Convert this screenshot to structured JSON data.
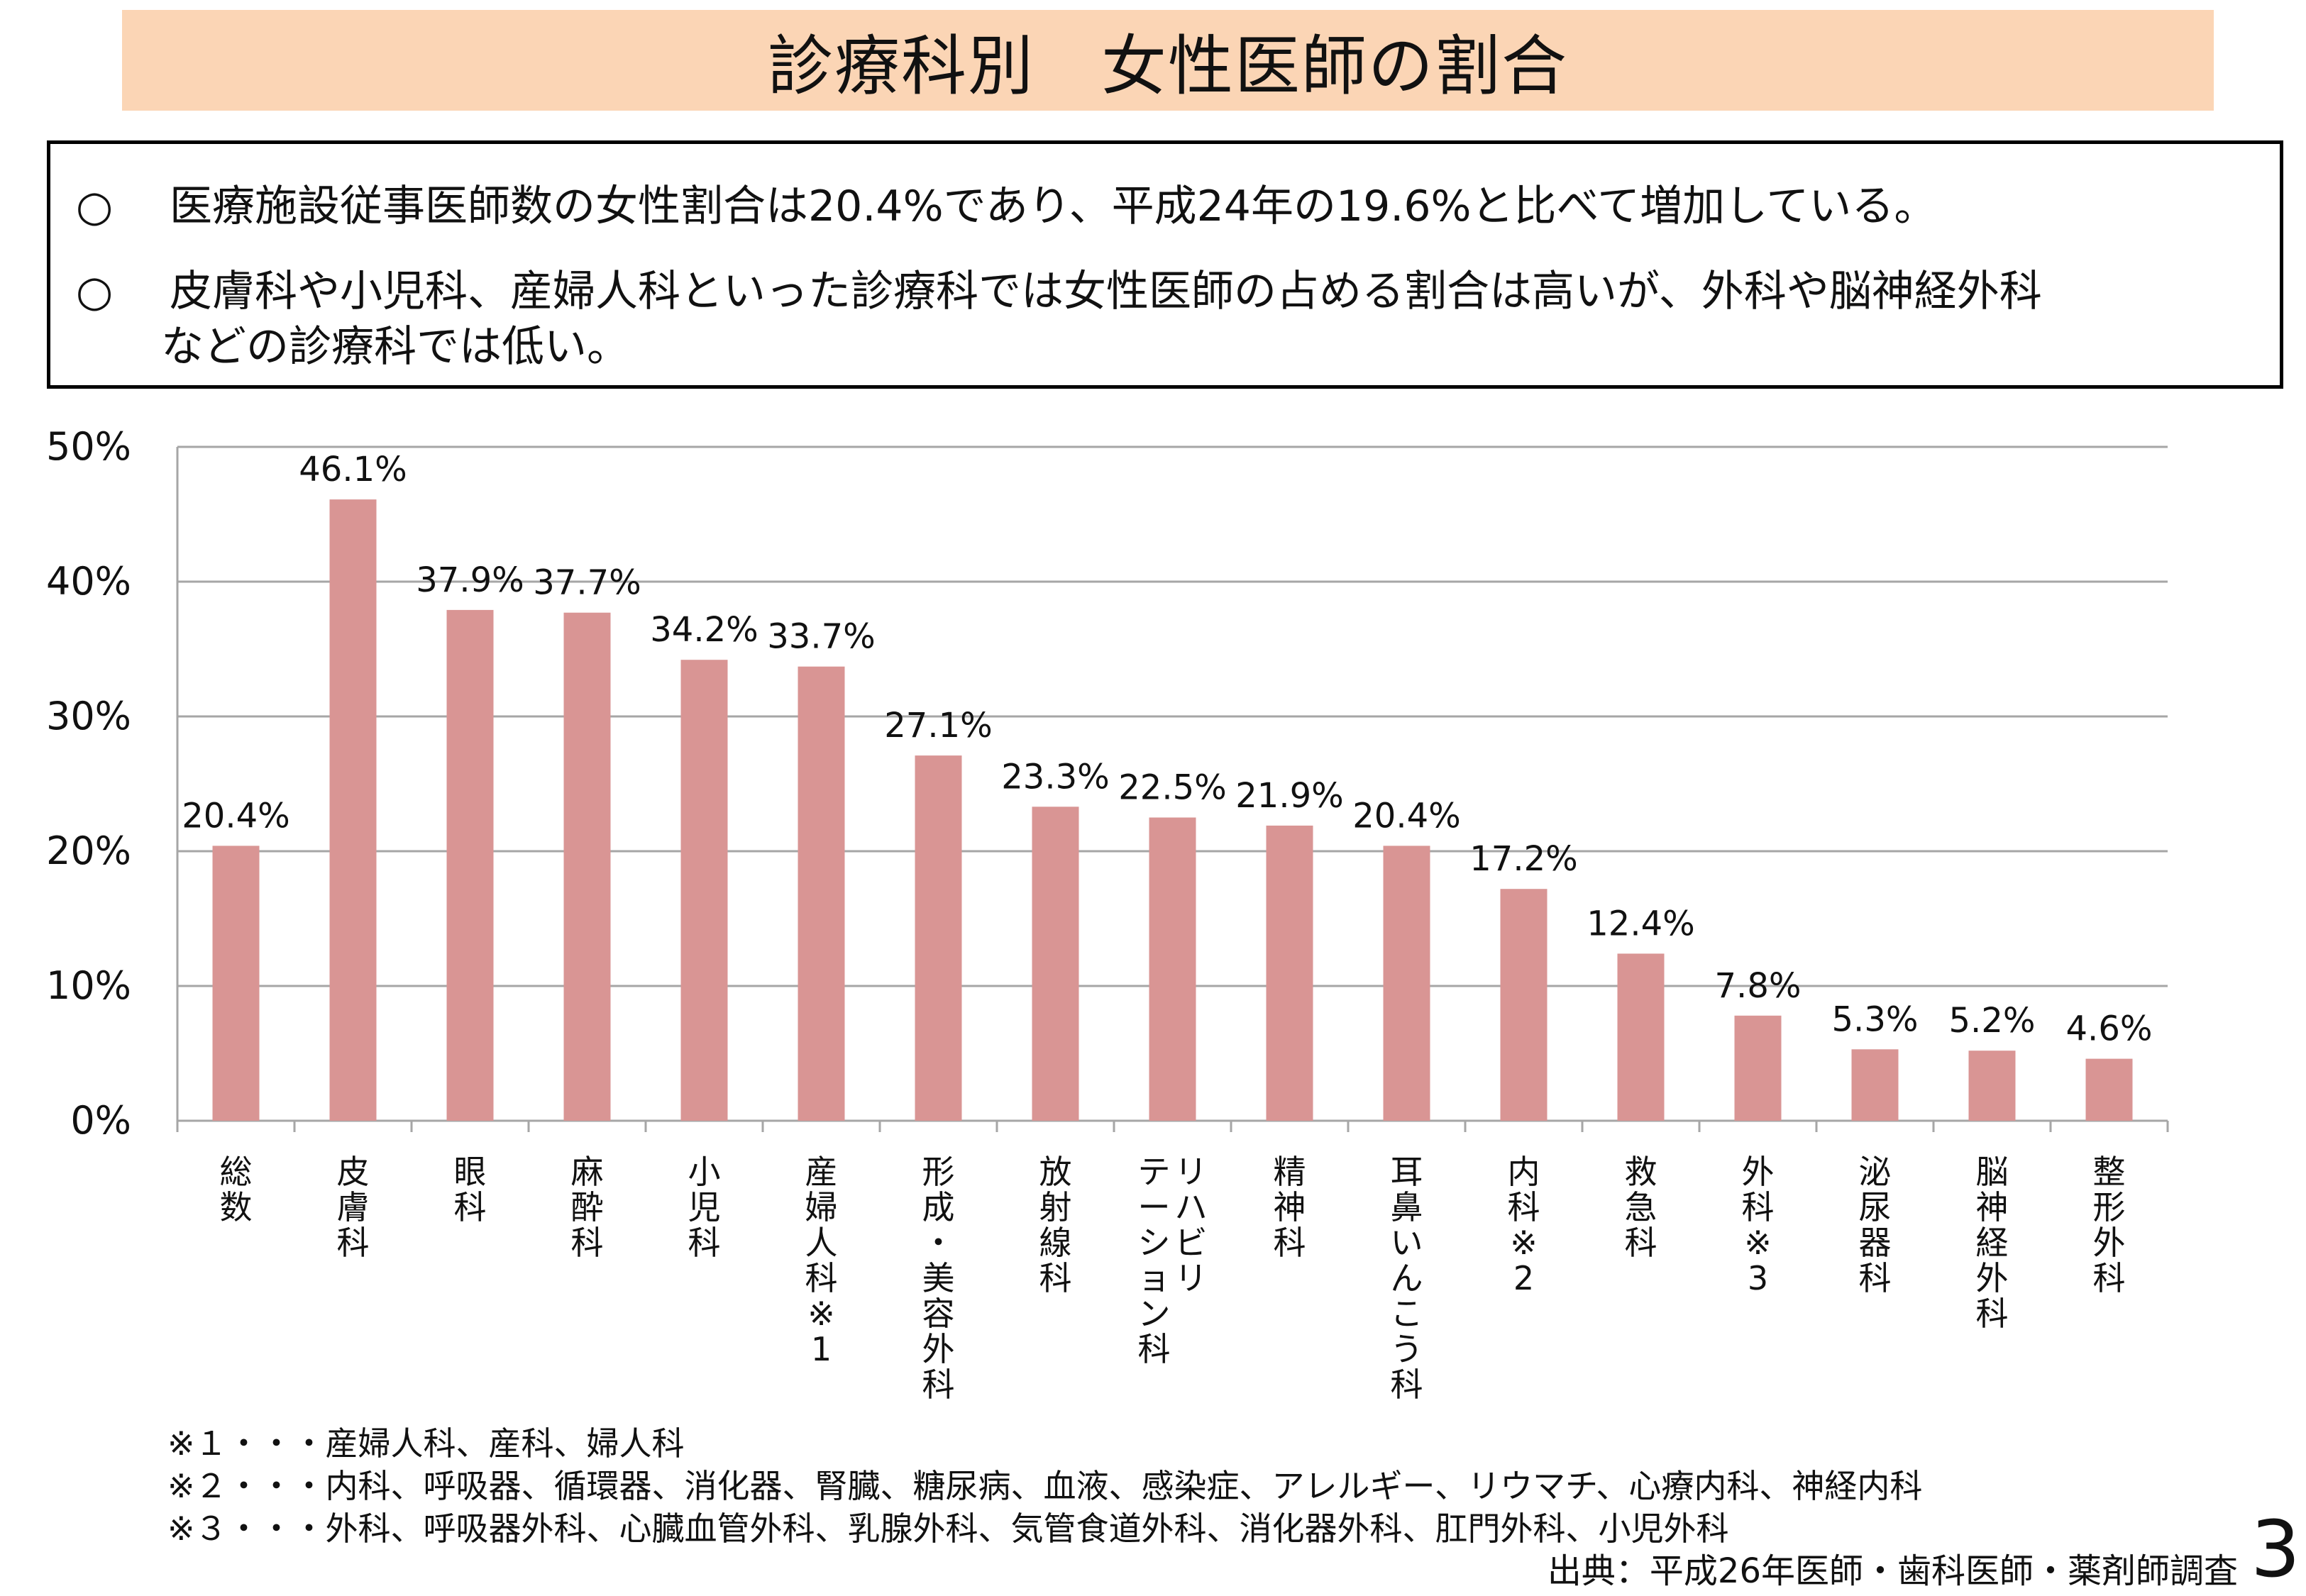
{
  "title": "診療科別　女性医師の割合",
  "summary": {
    "bullet_symbol": "○",
    "items": [
      {
        "text": "医療施設従事医師数の女性割合は20.4%であり、平成24年の19.6%と比べて増加している。"
      },
      {
        "text": "皮膚科や小児科、産婦人科といった診療科では女性医師の占める割合は高いが、外科や脳神経外科",
        "continuation": "などの診療科では低い。"
      }
    ]
  },
  "chart_data": {
    "type": "bar",
    "categories": [
      "総数",
      "皮膚科",
      "眼科",
      "麻酔科",
      "小児科",
      "産婦人科※1",
      "形成・美容外科",
      "放射線科",
      "リハビリテーション科",
      "精神科",
      "耳鼻いんこう科",
      "内科※2",
      "救急科",
      "外科※3",
      "泌尿器科",
      "脳神経外科",
      "整形外科"
    ],
    "category_label_columns": [
      [
        [
          "総",
          "数"
        ]
      ],
      [
        [
          "皮",
          "膚",
          "科"
        ]
      ],
      [
        [
          "眼",
          "科"
        ]
      ],
      [
        [
          "麻",
          "酔",
          "科"
        ]
      ],
      [
        [
          "小",
          "児",
          "科"
        ]
      ],
      [
        [
          "産",
          "婦",
          "人",
          "科",
          "※",
          "1"
        ]
      ],
      [
        [
          "形",
          "成",
          "・",
          "美",
          "容",
          "外",
          "科"
        ]
      ],
      [
        [
          "放",
          "射",
          "線",
          "科"
        ]
      ],
      [
        [
          "リ",
          "ハ",
          "ビ",
          "リ"
        ],
        [
          "テ",
          "ー",
          "シ",
          "ョ",
          "ン",
          "科"
        ]
      ],
      [
        [
          "精",
          "神",
          "科"
        ]
      ],
      [
        [
          "耳",
          "鼻",
          "い",
          "ん",
          "こ",
          "う",
          "科"
        ]
      ],
      [
        [
          "内",
          "科",
          "※",
          "2"
        ]
      ],
      [
        [
          "救",
          "急",
          "科"
        ]
      ],
      [
        [
          "外",
          "科",
          "※",
          "3"
        ]
      ],
      [
        [
          "泌",
          "尿",
          "器",
          "科"
        ]
      ],
      [
        [
          "脳",
          "神",
          "経",
          "外",
          "科"
        ]
      ],
      [
        [
          "整",
          "形",
          "外",
          "科"
        ]
      ]
    ],
    "values": [
      20.4,
      46.1,
      37.9,
      37.7,
      34.2,
      33.7,
      27.1,
      23.3,
      22.5,
      21.9,
      20.4,
      17.2,
      12.4,
      7.8,
      5.3,
      5.2,
      4.6
    ],
    "data_labels": [
      "20.4%",
      "46.1%",
      "37.9%",
      "37.7%",
      "34.2%",
      "33.7%",
      "27.1%",
      "23.3%",
      "22.5%",
      "21.9%",
      "20.4%",
      "17.2%",
      "12.4%",
      "7.8%",
      "5.3%",
      "5.2%",
      "4.6%"
    ],
    "y_ticks": [
      "0%",
      "10%",
      "20%",
      "30%",
      "40%",
      "50%"
    ],
    "ylim": [
      0,
      50
    ],
    "grid": true,
    "bar_color": "#d99594",
    "grid_color": "#a6a6a6"
  },
  "notes": [
    "※１・・・産婦人科、産科、婦人科",
    "※２・・・内科、呼吸器、循環器、消化器、腎臓、糖尿病、血液、感染症、アレルギー、リウマチ、心療内科、神経内科",
    "※３・・・外科、呼吸器外科、心臓血管外科、乳腺外科、気管食道外科、消化器外科、肛門外科、小児外科"
  ],
  "source": "出典：平成26年医師・歯科医師・薬剤師調査",
  "page_number": "3"
}
